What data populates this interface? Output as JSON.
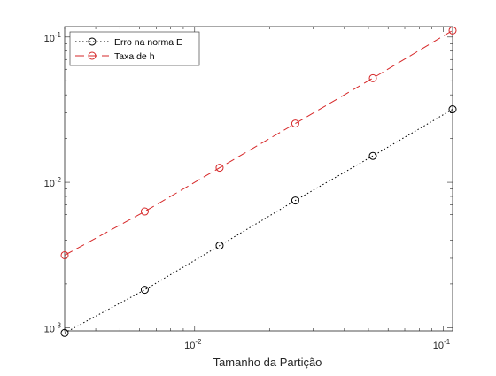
{
  "chart_data": {
    "type": "line",
    "xscale": "log",
    "yscale": "log",
    "xlabel": "Tamanho da Partição",
    "ylabel": "",
    "title": "",
    "xlim": [
      0.003,
      0.109
    ],
    "ylim": [
      0.00095,
      0.118
    ],
    "xticks": [
      {
        "value": 0.01,
        "base": "10",
        "exp": "-2"
      },
      {
        "value": 0.1,
        "base": "10",
        "exp": "-1"
      }
    ],
    "yticks": [
      {
        "value": 0.001,
        "base": "10",
        "exp": "-3"
      },
      {
        "value": 0.01,
        "base": "10",
        "exp": "-2"
      },
      {
        "value": 0.1,
        "base": "10",
        "exp": "-1"
      }
    ],
    "grid": false,
    "legend_position": "top-left",
    "series": [
      {
        "name": "Erro na norma E",
        "color": "#000000",
        "line_style": "dotted",
        "marker": "circle",
        "x": [
          0.003,
          0.0063,
          0.0126,
          0.0254,
          0.0521,
          0.109
        ],
        "y": [
          0.00092,
          0.00182,
          0.00367,
          0.0075,
          0.0152,
          0.0318
        ]
      },
      {
        "name": "Taxa de h",
        "color": "#d62728",
        "line_style": "dashed",
        "marker": "circle",
        "x": [
          0.003,
          0.0063,
          0.0126,
          0.0254,
          0.0521,
          0.109
        ],
        "y": [
          0.00315,
          0.0063,
          0.0126,
          0.0254,
          0.0521,
          0.111
        ]
      }
    ]
  }
}
